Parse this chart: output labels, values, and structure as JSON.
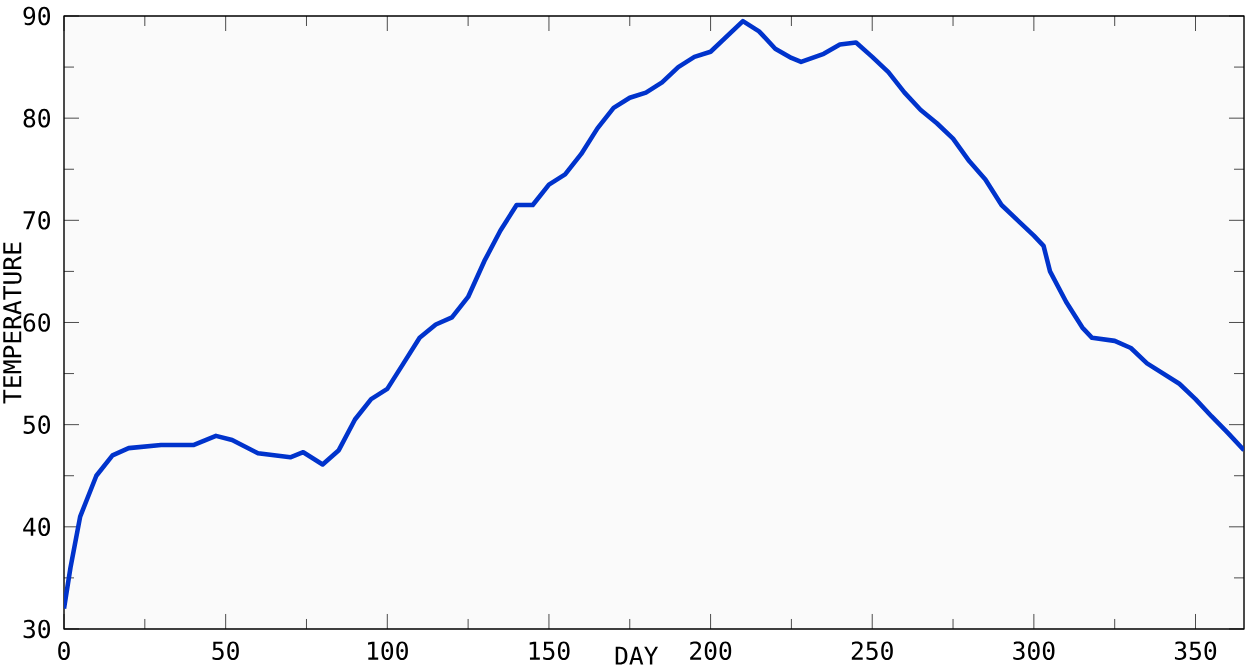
{
  "chart_data": {
    "type": "line",
    "xlabel": "DAY",
    "ylabel": "TEMPERATURE",
    "xlim": [
      0,
      365
    ],
    "ylim": [
      30,
      90
    ],
    "xticks": [
      0,
      50,
      100,
      150,
      200,
      250,
      300,
      350
    ],
    "yticks": [
      30,
      40,
      50,
      60,
      70,
      80,
      90
    ],
    "grid": false,
    "marker": "none",
    "line_style": "solid",
    "x": [
      0,
      2,
      5,
      10,
      15,
      20,
      30,
      40,
      47,
      52,
      60,
      70,
      74,
      80,
      85,
      90,
      95,
      100,
      105,
      110,
      115,
      120,
      125,
      130,
      135,
      140,
      145,
      150,
      155,
      160,
      165,
      170,
      175,
      180,
      185,
      190,
      195,
      200,
      205,
      210,
      215,
      220,
      225,
      228,
      235,
      240,
      245,
      250,
      255,
      260,
      265,
      270,
      275,
      280,
      285,
      290,
      295,
      300,
      303,
      305,
      310,
      315,
      318,
      325,
      330,
      335,
      340,
      345,
      350,
      355,
      360,
      365
    ],
    "series": [
      {
        "color": "#0033cc",
        "values": [
          32,
          36,
          41,
          45,
          47,
          47.7,
          48,
          48,
          48.9,
          48.5,
          47.2,
          46.8,
          47.3,
          46.1,
          47.5,
          50.5,
          52.5,
          53.5,
          56,
          58.5,
          59.8,
          60.5,
          62.5,
          66,
          69,
          71.5,
          71.5,
          73.5,
          74.5,
          76.5,
          79,
          81,
          82,
          82.5,
          83.5,
          85,
          86,
          86.5,
          88,
          89.5,
          88.5,
          86.8,
          85.9,
          85.5,
          86.3,
          87.2,
          87.4,
          86,
          84.5,
          82.5,
          80.8,
          79.5,
          78,
          75.8,
          74,
          71.5,
          70,
          68.5,
          67.5,
          65,
          62,
          59.5,
          58.5,
          58.2,
          57.5,
          56,
          55,
          54,
          52.5,
          50.8,
          49.2,
          47.5
        ]
      }
    ]
  }
}
